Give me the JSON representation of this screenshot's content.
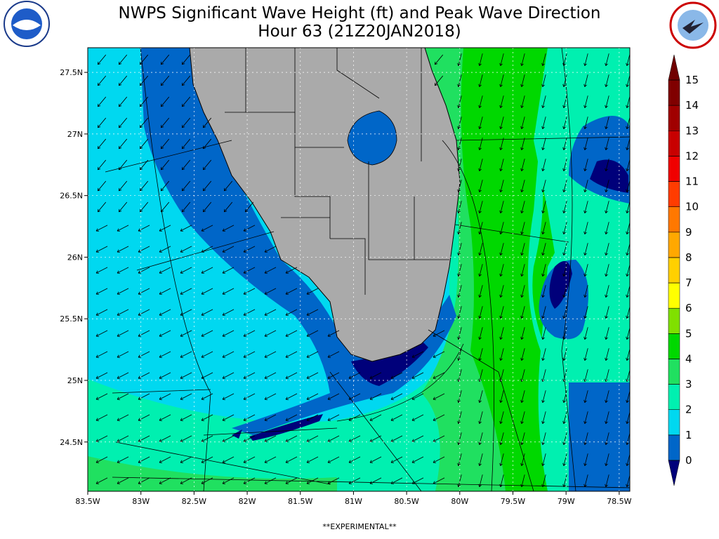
{
  "title": [
    "NWPS Significant Wave Height (ft) and Peak Wave Direction",
    "Hour 63 (21Z20JAN2018)"
  ],
  "footer": "**EXPERIMENTAL**",
  "map": {
    "xlim": [
      -83.5,
      -78.4
    ],
    "ylim": [
      24.1,
      27.7
    ],
    "xticks": [
      {
        "value": -83.5,
        "label": "83.5W"
      },
      {
        "value": -83,
        "label": "83W"
      },
      {
        "value": -82.5,
        "label": "82.5W"
      },
      {
        "value": -82,
        "label": "82W"
      },
      {
        "value": -81.5,
        "label": "81.5W"
      },
      {
        "value": -81,
        "label": "81W"
      },
      {
        "value": -80.5,
        "label": "80.5W"
      },
      {
        "value": -80,
        "label": "80W"
      },
      {
        "value": -79.5,
        "label": "79.5W"
      },
      {
        "value": -79,
        "label": "79W"
      },
      {
        "value": -78.5,
        "label": "78.5W"
      }
    ],
    "yticks": [
      {
        "value": 24.5,
        "label": "24.5N"
      },
      {
        "value": 25,
        "label": "25N"
      },
      {
        "value": 25.5,
        "label": "25.5N"
      },
      {
        "value": 26,
        "label": "26N"
      },
      {
        "value": 26.5,
        "label": "26.5N"
      },
      {
        "value": 27,
        "label": "27N"
      },
      {
        "value": 27.5,
        "label": "27.5N"
      }
    ]
  },
  "colorbar": {
    "ticks": [
      0,
      1,
      2,
      3,
      4,
      5,
      6,
      7,
      8,
      9,
      10,
      11,
      12,
      13,
      14,
      15
    ],
    "colors": [
      "#0066c8",
      "#00d8f0",
      "#00f0b0",
      "#20e060",
      "#00d800",
      "#80e000",
      "#ffff00",
      "#ffd000",
      "#ffa800",
      "#ff7800",
      "#ff3c00",
      "#f00000",
      "#c80000",
      "#a00000",
      "#800000"
    ],
    "under": "#00007a",
    "over": "#700000"
  }
}
